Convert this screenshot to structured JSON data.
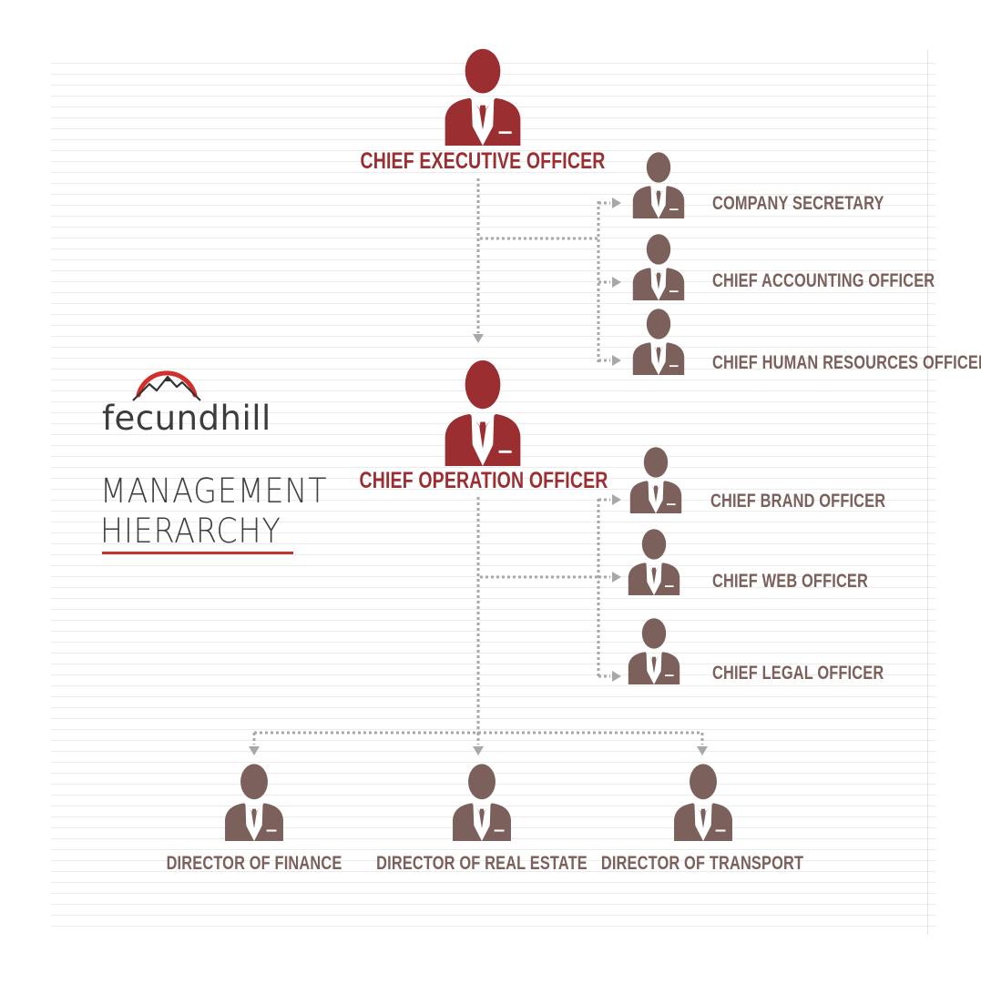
{
  "brand": {
    "name": "fecundhill",
    "accent_color": "#d0312d"
  },
  "heading": {
    "line1": "MANAGEMENT",
    "line2": "HIERARCHY"
  },
  "colors": {
    "primary": "#9a2e31",
    "secondary": "#7b605b",
    "connector": "#a8a8a8"
  },
  "nodes": [
    {
      "id": "ceo",
      "label": "CHIEF EXECUTIVE OFFICER",
      "level": "primary"
    },
    {
      "id": "cs",
      "label": "COMPANY SECRETARY",
      "level": "secondary"
    },
    {
      "id": "cao",
      "label": "CHIEF ACCOUNTING OFFICER",
      "level": "secondary"
    },
    {
      "id": "chro",
      "label": "CHIEF HUMAN RESOURCES OFFICER",
      "level": "secondary"
    },
    {
      "id": "coo",
      "label": "CHIEF OPERATION OFFICER",
      "level": "primary"
    },
    {
      "id": "cbo",
      "label": "CHIEF BRAND OFFICER",
      "level": "secondary"
    },
    {
      "id": "cwo",
      "label": "CHIEF WEB OFFICER",
      "level": "secondary"
    },
    {
      "id": "clo",
      "label": "CHIEF LEGAL OFFICER",
      "level": "secondary"
    },
    {
      "id": "dof",
      "label": "DIRECTOR OF FINANCE",
      "level": "secondary"
    },
    {
      "id": "dore",
      "label": "DIRECTOR OF REAL ESTATE",
      "level": "secondary"
    },
    {
      "id": "dot",
      "label": "DIRECTOR OF TRANSPORT",
      "level": "secondary"
    }
  ],
  "edges": [
    {
      "from": "ceo",
      "to": "coo"
    },
    {
      "from": "ceo",
      "to": "cs"
    },
    {
      "from": "ceo",
      "to": "cao"
    },
    {
      "from": "ceo",
      "to": "chro"
    },
    {
      "from": "coo",
      "to": "cbo"
    },
    {
      "from": "coo",
      "to": "cwo"
    },
    {
      "from": "coo",
      "to": "clo"
    },
    {
      "from": "coo",
      "to": "dof"
    },
    {
      "from": "coo",
      "to": "dore"
    },
    {
      "from": "coo",
      "to": "dot"
    }
  ]
}
